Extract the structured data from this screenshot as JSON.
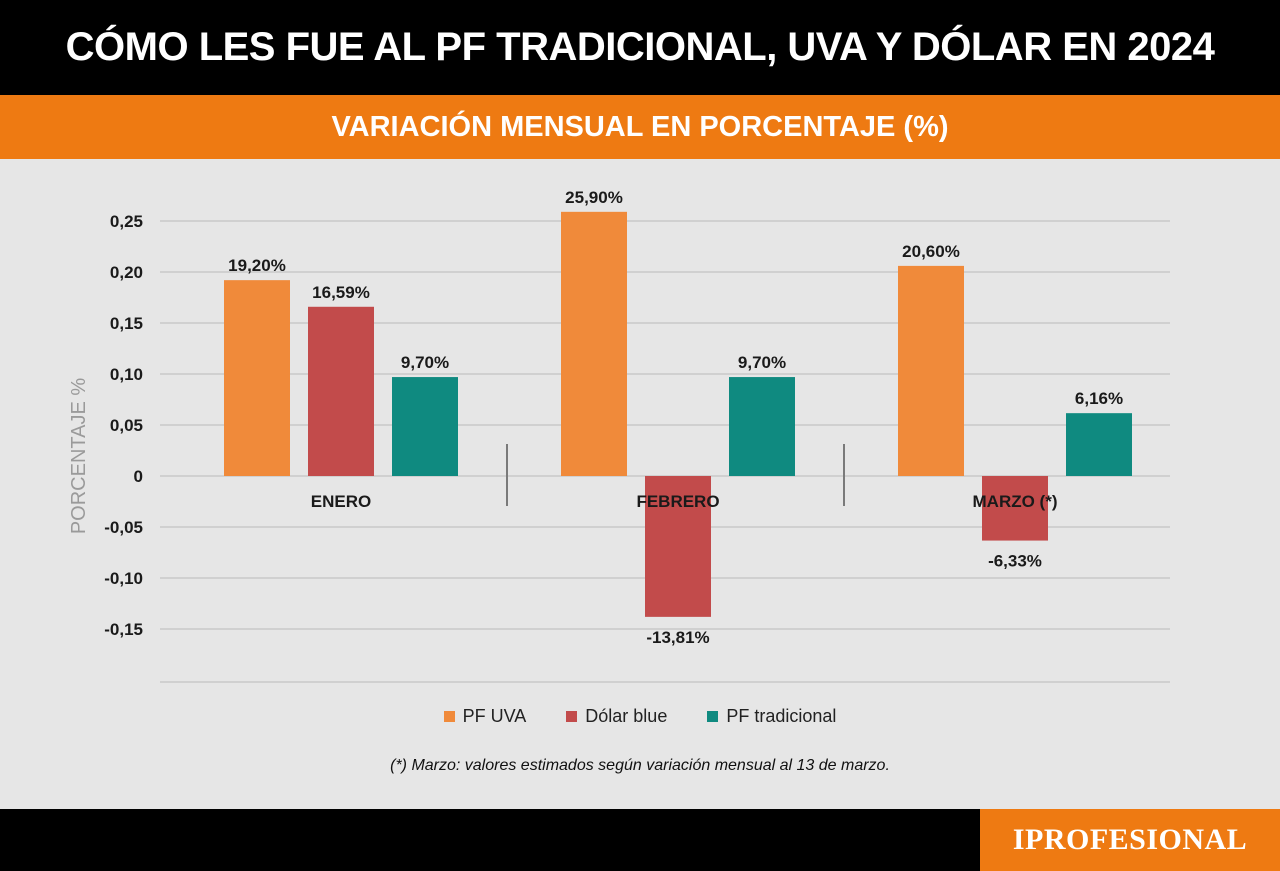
{
  "header": {
    "title": "CÓMO LES FUE AL PF TRADICIONAL, UVA Y  DÓLAR EN 2024",
    "subtitle": "VARIACIÓN MENSUAL EN PORCENTAJE (%)"
  },
  "chart_data": {
    "type": "bar",
    "title": "CÓMO LES FUE AL PF TRADICIONAL, UVA Y  DÓLAR EN 2024",
    "subtitle": "VARIACIÓN MENSUAL EN PORCENTAJE (%)",
    "xlabel": "",
    "ylabel": "PORCENTAJE %",
    "ylim": [
      -0.15,
      0.25
    ],
    "yticks": [
      0.25,
      0.2,
      0.15,
      0.1,
      0.05,
      0,
      -0.05,
      -0.1,
      -0.15
    ],
    "ytick_labels": [
      "0,25",
      "0,20",
      "0,15",
      "0,10",
      "0,05",
      "0",
      "-0,05",
      "-0,10",
      "-0,15"
    ],
    "categories": [
      "ENERO",
      "FEBRERO",
      "MARZO (*)"
    ],
    "series": [
      {
        "name": "PF UVA",
        "color": "#f08a3a",
        "values": [
          0.192,
          0.259,
          0.206
        ],
        "labels": [
          "19,20%",
          "25,90%",
          "20,60%"
        ]
      },
      {
        "name": "Dólar blue",
        "color": "#c24b4b",
        "values": [
          0.1659,
          -0.1381,
          -0.0633
        ],
        "labels": [
          "16,59%",
          "-13,81%",
          "-6,33%"
        ]
      },
      {
        "name": "PF tradicional",
        "color": "#0f8a80",
        "values": [
          0.097,
          0.097,
          0.0616
        ],
        "labels": [
          "9,70%",
          "9,70%",
          "6,16%"
        ]
      }
    ],
    "grid": true,
    "legend_position": "bottom"
  },
  "legend": {
    "items": [
      {
        "label": "PF UVA",
        "color": "#f08a3a"
      },
      {
        "label": "Dólar blue",
        "color": "#c24b4b"
      },
      {
        "label": "PF tradicional",
        "color": "#0f8a80"
      }
    ]
  },
  "footnote": "(*) Marzo: valores estimados según variación mensual  al 13 de marzo.",
  "footer": {
    "brand": "IPROFESIONAL"
  }
}
